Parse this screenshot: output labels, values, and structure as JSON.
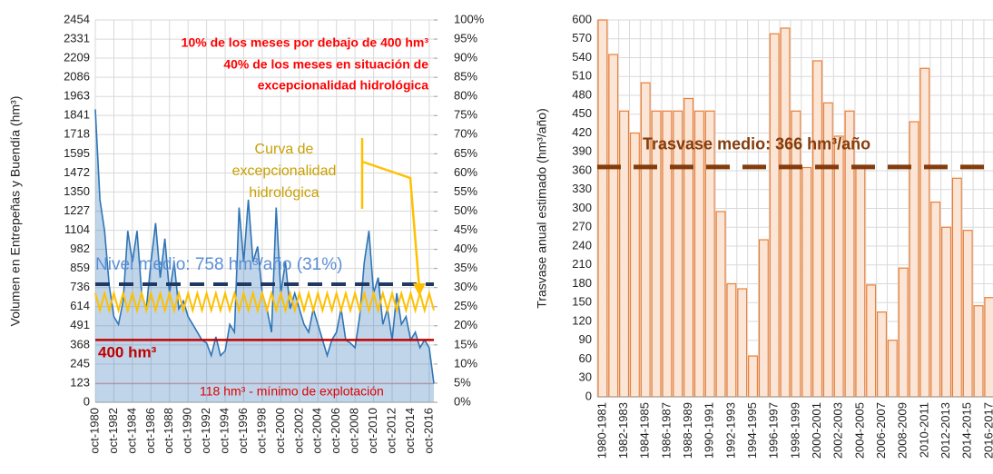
{
  "chart_data": [
    {
      "type": "area",
      "y_label": "Volumen en Entrepeñas y Buendía (hm³)",
      "categories": [
        "oct-1980",
        null,
        null,
        null,
        "oct-1982",
        null,
        null,
        null,
        "oct-1984",
        null,
        null,
        null,
        "oct-1986",
        null,
        null,
        null,
        "oct-1988",
        null,
        null,
        null,
        "oct-1990",
        null,
        null,
        null,
        "oct-1992",
        null,
        null,
        null,
        "oct-1994",
        null,
        null,
        null,
        "oct-1996",
        null,
        null,
        null,
        "oct-1998",
        null,
        null,
        null,
        "oct-2000",
        null,
        null,
        null,
        "oct-2002",
        null,
        null,
        null,
        "oct-2004",
        null,
        null,
        null,
        "oct-2006",
        null,
        null,
        null,
        "oct-2008",
        null,
        null,
        null,
        "oct-2010",
        null,
        null,
        null,
        "oct-2012",
        null,
        null,
        null,
        "oct-2014",
        null,
        null,
        null,
        "oct-2016",
        null
      ],
      "series": [
        {
          "color": "#2e75b6",
          "values": [
            1880,
            1300,
            1100,
            750,
            550,
            500,
            650,
            1100,
            900,
            1100,
            700,
            600,
            900,
            1150,
            800,
            1050,
            700,
            900,
            600,
            650,
            550,
            500,
            450,
            400,
            380,
            300,
            420,
            300,
            330,
            500,
            450,
            1250,
            900,
            1300,
            900,
            1000,
            700,
            600,
            450,
            1250,
            700,
            900,
            600,
            700,
            600,
            500,
            450,
            600,
            500,
            400,
            300,
            400,
            450,
            600,
            400,
            380,
            350,
            550,
            900,
            1100,
            700,
            800,
            500,
            600,
            400,
            700,
            500,
            550,
            400,
            450,
            350,
            400,
            350,
            120
          ]
        },
        {
          "color": "#ffc000",
          "values": [
            700,
            590,
            700,
            590,
            700,
            590,
            700,
            590,
            700,
            590,
            700,
            590,
            700,
            590,
            700,
            590,
            700,
            590,
            700,
            590,
            700,
            590,
            700,
            590,
            700,
            590,
            700,
            590,
            700,
            590,
            700,
            590,
            700,
            590,
            700,
            590,
            700,
            590,
            700,
            590,
            700,
            590,
            700,
            590,
            700,
            590,
            700,
            590,
            700,
            590,
            700,
            590,
            700,
            590,
            700,
            590,
            700,
            590,
            700,
            590,
            700,
            590,
            700,
            590,
            700,
            590,
            700,
            590,
            700,
            590,
            700,
            590,
            700,
            590
          ]
        }
      ],
      "reference_lines": [
        {
          "value": 758,
          "label": "Nivel medio: 758 hm³/año (31%)",
          "color": "#1f3864"
        },
        {
          "value": 400,
          "label": "400 hm³",
          "color": "#c00000"
        },
        {
          "value": 118,
          "label": "118 hm³ - mínimo de explotación",
          "color": "#c00000"
        }
      ],
      "annotations": [
        "10% de los meses por debajo de 400 hm³",
        "40% de los meses en situación de",
        "excepcionalidad hidrológica",
        "Curva de",
        "excepcionalidad",
        "hidrológica"
      ],
      "ylim": [
        0,
        2454
      ],
      "yticks": [
        0,
        123,
        245,
        368,
        491,
        614,
        736,
        859,
        982,
        1104,
        1227,
        1350,
        1472,
        1595,
        1718,
        1841,
        1963,
        2086,
        2209,
        2331,
        2454
      ],
      "y2lim": [
        0,
        100
      ],
      "y2ticks": [
        {
          "value": 0,
          "label": "0%"
        },
        {
          "value": 5,
          "label": "5%"
        },
        {
          "value": 10,
          "label": "10%"
        },
        {
          "value": 15,
          "label": "15%"
        },
        {
          "value": 20,
          "label": "20%"
        },
        {
          "value": 25,
          "label": "25%"
        },
        {
          "value": 30,
          "label": "30%"
        },
        {
          "value": 35,
          "label": "35%"
        },
        {
          "value": 40,
          "label": "40%"
        },
        {
          "value": 45,
          "label": "45%"
        },
        {
          "value": 50,
          "label": "50%"
        },
        {
          "value": 55,
          "label": "55%"
        },
        {
          "value": 60,
          "label": "60%"
        },
        {
          "value": 65,
          "label": "65%"
        },
        {
          "value": 70,
          "label": "70%"
        },
        {
          "value": 75,
          "label": "75%"
        },
        {
          "value": 80,
          "label": "80%"
        },
        {
          "value": 85,
          "label": "85%"
        },
        {
          "value": 90,
          "label": "90%"
        },
        {
          "value": 95,
          "label": "95%"
        },
        {
          "value": 100,
          "label": "100%"
        }
      ],
      "grid": true
    },
    {
      "type": "bar",
      "y_label": "Trasvase anual estimado (hm³/año)",
      "categories": [
        "1980-1981",
        null,
        "1982-1983",
        null,
        "1984-1985",
        null,
        "1986-1987",
        null,
        "1988-1989",
        null,
        "1990-1991",
        null,
        "1992-1993",
        null,
        "1994-1995",
        null,
        "1996-1997",
        null,
        "1998-1999",
        null,
        "2000-2001",
        null,
        "2002-2003",
        null,
        "2004-2005",
        null,
        "2006-2007",
        null,
        "2008-2009",
        null,
        "2010-2011",
        null,
        "2012-2013",
        null,
        "2014-2015",
        null,
        "2016-2017"
      ],
      "values": [
        600,
        545,
        455,
        420,
        500,
        455,
        455,
        455,
        475,
        455,
        455,
        295,
        180,
        172,
        65,
        250,
        578,
        587,
        455,
        365,
        535,
        468,
        415,
        455,
        368,
        178,
        135,
        90,
        205,
        438,
        523,
        310,
        270,
        348,
        265,
        145,
        158
      ],
      "color": "#fbe5d6",
      "edge_color": "#ed7d31",
      "reference_lines": [
        {
          "value": 366,
          "label": "Trasvase medio: 366 hm³/año",
          "color": "#843c0c"
        }
      ],
      "ylim": [
        0,
        600
      ],
      "yticks": [
        0,
        30,
        60,
        90,
        120,
        150,
        180,
        210,
        240,
        270,
        300,
        330,
        360,
        390,
        420,
        450,
        480,
        510,
        540,
        570,
        600
      ],
      "grid": true
    }
  ]
}
